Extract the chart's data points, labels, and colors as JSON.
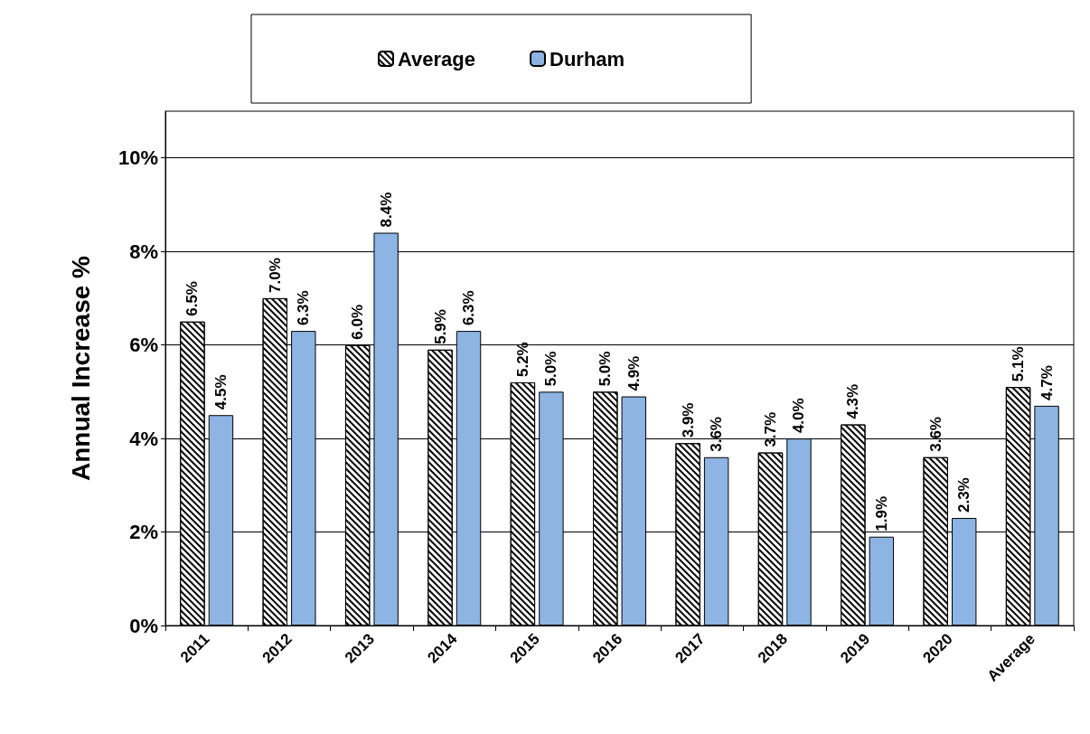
{
  "chart_data": {
    "type": "bar",
    "ylabel": "Annual Increase %",
    "categories": [
      "2011",
      "2012",
      "2013",
      "2014",
      "2015",
      "2016",
      "2017",
      "2018",
      "2019",
      "2020",
      "Average"
    ],
    "series": [
      {
        "name": "Average",
        "color": "#ffffff",
        "values": [
          6.5,
          7.0,
          6.0,
          5.9,
          5.2,
          5.0,
          3.9,
          3.7,
          4.3,
          3.6,
          5.1
        ],
        "value_labels": [
          "6.5%",
          "7.0%",
          "6.0%",
          "5.9%",
          "5.2%",
          "5.0%",
          "3.9%",
          "3.7%",
          "4.3%",
          "3.6%",
          "5.1%"
        ]
      },
      {
        "name": "Durham",
        "color": "#8db4e2",
        "values": [
          4.5,
          6.3,
          8.4,
          6.3,
          5.0,
          4.9,
          3.6,
          4.0,
          1.9,
          2.3,
          4.7
        ],
        "value_labels": [
          "4.5%",
          "6.3%",
          "8.4%",
          "6.3%",
          "5.0%",
          "4.9%",
          "3.6%",
          "4.0%",
          "1.9%",
          "2.3%",
          "4.7%"
        ]
      }
    ],
    "ylim": [
      0,
      11
    ],
    "yticks": [
      {
        "value": 0,
        "label": "0%"
      },
      {
        "value": 2,
        "label": "2%"
      },
      {
        "value": 4,
        "label": "4%"
      },
      {
        "value": 6,
        "label": "6%"
      },
      {
        "value": 8,
        "label": "8%"
      },
      {
        "value": 10,
        "label": "10%"
      }
    ],
    "grid": "y",
    "legend": "top"
  }
}
